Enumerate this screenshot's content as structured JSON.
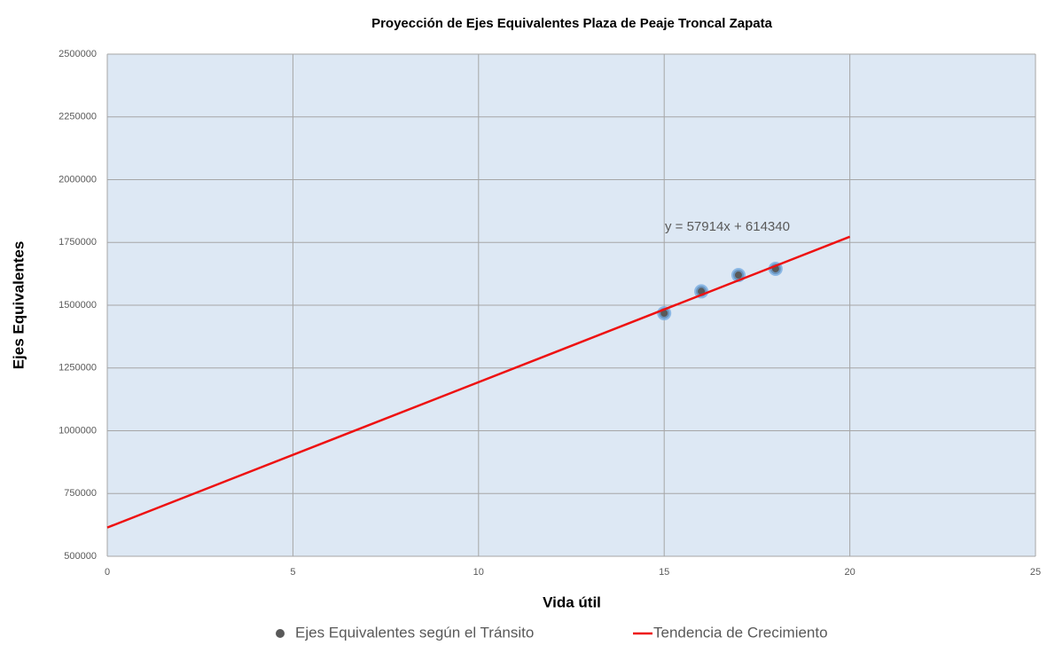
{
  "chart_data": {
    "type": "scatter",
    "title": "Proyección de Ejes Equivalentes Plaza de Peaje Troncal Zapata",
    "x_label": "Vida útil",
    "y_label": "Ejes Equivalentes",
    "annotation": "y = 57914x + 614340",
    "xlim": [
      0,
      25
    ],
    "xticks": [
      0,
      5,
      10,
      15,
      20,
      25
    ],
    "ylim": [
      500000,
      2500000
    ],
    "yticks": [
      500000,
      750000,
      1000000,
      1250000,
      1500000,
      1750000,
      2000000,
      2250000,
      2500000
    ],
    "grid": true,
    "legend": "bottom",
    "series": [
      {
        "name": "Ejes Equivalentes según el Tránsito",
        "color": "#595959",
        "kind": "scatter",
        "x": [
          15,
          16,
          17,
          18
        ],
        "values": [
          1468000,
          1555000,
          1620000,
          1645000
        ]
      },
      {
        "name": "Tendencia de Crecimiento",
        "color": "#ee1111",
        "kind": "line",
        "x": [
          0,
          20
        ],
        "values": [
          614340,
          1772620
        ]
      }
    ]
  }
}
